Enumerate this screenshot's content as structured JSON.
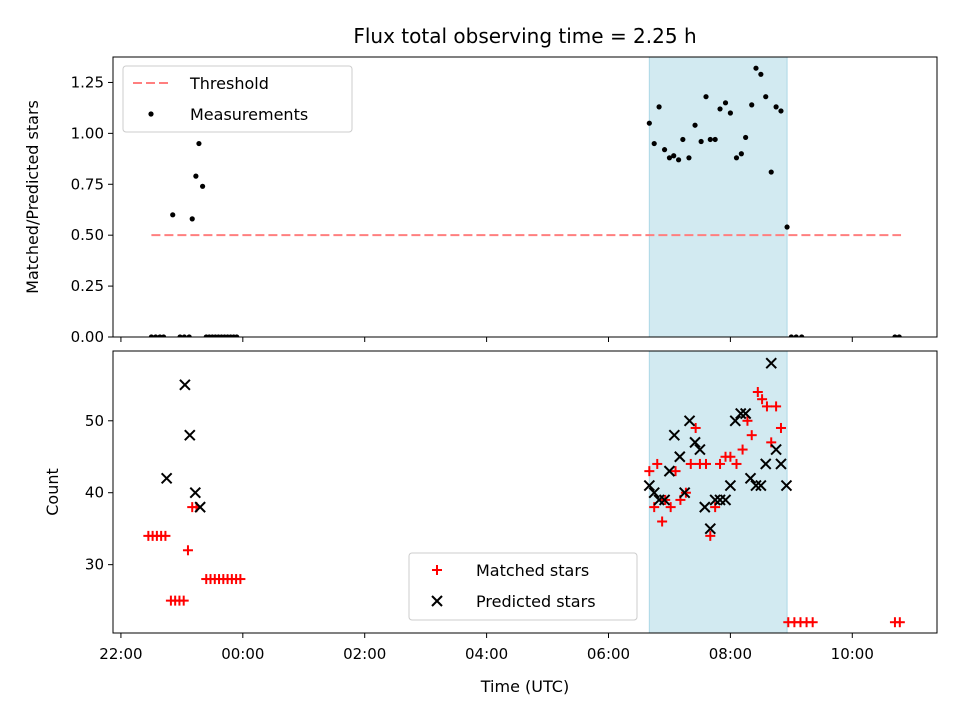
{
  "chart_data": {
    "title": "Flux total observing time = 2.25 h",
    "xlabel": "Time (UTC)",
    "x_ticks": [
      "22:00",
      "00:00",
      "02:00",
      "04:00",
      "06:00",
      "08:00",
      "10:00"
    ],
    "x_tick_hours": [
      -2,
      0,
      2,
      4,
      6,
      8,
      10
    ],
    "xlim_hours": [
      -2.13,
      11.39
    ],
    "shaded_interval_hours": [
      6.67,
      8.93
    ],
    "colors": {
      "shade": "#add8e6",
      "threshold": "#ff7f7f",
      "measurements": "#000000",
      "matched": "#ff0000",
      "predicted": "#000000"
    },
    "panels": [
      {
        "id": "ratio",
        "type": "scatter",
        "ylabel": "Matched/Predicted stars",
        "ylim": [
          0,
          1.375
        ],
        "y_ticks": [
          "0.00",
          "0.25",
          "0.50",
          "0.75",
          "1.00",
          "1.25"
        ],
        "y_tick_values": [
          0,
          0.25,
          0.5,
          0.75,
          1.0,
          1.25
        ],
        "legend": {
          "position": "upper-left",
          "entries": [
            "Threshold",
            "Measurements"
          ]
        },
        "threshold": {
          "name": "Threshold",
          "y": 0.5,
          "x_range": [
            -1.5,
            10.8
          ]
        },
        "series": [
          {
            "name": "Measurements",
            "marker": "dot",
            "x": [
              -1.5,
              -1.43,
              -1.36,
              -1.3,
              -1.15,
              -1.03,
              -0.96,
              -0.88,
              -0.83,
              -0.77,
              -0.72,
              -0.66,
              -0.6,
              -0.55,
              -0.5,
              -0.45,
              -0.4,
              -0.35,
              -0.3,
              -0.25,
              -0.2,
              -0.15,
              -0.1,
              6.67,
              6.75,
              6.83,
              6.92,
              7.0,
              7.07,
              7.15,
              7.22,
              7.32,
              7.42,
              7.52,
              7.6,
              7.67,
              7.75,
              7.83,
              7.92,
              8.0,
              8.1,
              8.18,
              8.25,
              8.35,
              8.42,
              8.5,
              8.58,
              8.67,
              8.75,
              8.83,
              8.93,
              9.0,
              9.08,
              9.17,
              10.7,
              10.77
            ],
            "y": [
              0,
              0,
              0,
              0,
              0.6,
              0,
              0,
              0,
              0.58,
              0.79,
              0.95,
              0.74,
              0,
              0,
              0,
              0,
              0,
              0,
              0,
              0,
              0,
              0,
              0,
              1.05,
              0.95,
              1.13,
              0.92,
              0.88,
              0.89,
              0.87,
              0.97,
              0.88,
              1.04,
              0.96,
              1.18,
              0.97,
              0.97,
              1.12,
              1.15,
              1.1,
              0.88,
              0.9,
              0.98,
              1.14,
              1.32,
              1.29,
              1.18,
              0.81,
              1.13,
              1.11,
              0.54,
              0,
              0,
              0,
              0,
              0
            ]
          }
        ]
      },
      {
        "id": "counts",
        "type": "scatter",
        "ylabel": "Count",
        "ylim": [
          20.5,
          59.7
        ],
        "y_ticks": [
          "30",
          "40",
          "50"
        ],
        "y_tick_values": [
          30,
          40,
          50
        ],
        "legend": {
          "position": "lower-center",
          "entries": [
            "Matched stars",
            "Predicted stars"
          ]
        },
        "series": [
          {
            "name": "Matched stars",
            "marker": "plus",
            "x": [
              -1.55,
              -1.48,
              -1.41,
              -1.34,
              -1.27,
              -1.18,
              -1.11,
              -1.04,
              -0.97,
              -0.9,
              -0.83,
              -0.76,
              -0.6,
              -0.53,
              -0.46,
              -0.39,
              -0.32,
              -0.25,
              -0.18,
              -0.11,
              -0.04,
              6.67,
              6.75,
              6.8,
              6.88,
              6.93,
              7.02,
              7.1,
              7.18,
              7.27,
              7.35,
              7.43,
              7.5,
              7.6,
              7.67,
              7.75,
              7.83,
              7.92,
              8.0,
              8.1,
              8.2,
              8.28,
              8.35,
              8.45,
              8.52,
              8.6,
              8.67,
              8.75,
              8.83,
              8.95,
              9.05,
              9.15,
              9.25,
              9.35,
              10.7,
              10.78
            ],
            "y": [
              34,
              34,
              34,
              34,
              34,
              25,
              25,
              25,
              25,
              32,
              38,
              38,
              28,
              28,
              28,
              28,
              28,
              28,
              28,
              28,
              28,
              43,
              38,
              44,
              36,
              39,
              38,
              43,
              39,
              40,
              44,
              49,
              44,
              44,
              34,
              38,
              44,
              45,
              45,
              44,
              46,
              50,
              48,
              54,
              53,
              52,
              47,
              52,
              49,
              22,
              22,
              22,
              22,
              22,
              22,
              22
            ]
          },
          {
            "name": "Predicted stars",
            "marker": "x",
            "x": [
              -1.25,
              -0.95,
              -0.87,
              -0.78,
              -0.7,
              6.67,
              6.75,
              6.83,
              6.92,
              7.0,
              7.08,
              7.17,
              7.25,
              7.33,
              7.42,
              7.5,
              7.58,
              7.67,
              7.75,
              7.83,
              7.92,
              8.0,
              8.08,
              8.17,
              8.25,
              8.33,
              8.42,
              8.5,
              8.58,
              8.67,
              8.75,
              8.83,
              8.92
            ],
            "y": [
              42,
              55,
              48,
              40,
              38,
              41,
              40,
              39,
              39,
              43,
              48,
              45,
              40,
              50,
              47,
              46,
              38,
              35,
              39,
              39,
              39,
              41,
              50,
              51,
              51,
              42,
              41,
              41,
              44,
              58,
              46,
              44,
              41
            ]
          }
        ]
      }
    ]
  }
}
